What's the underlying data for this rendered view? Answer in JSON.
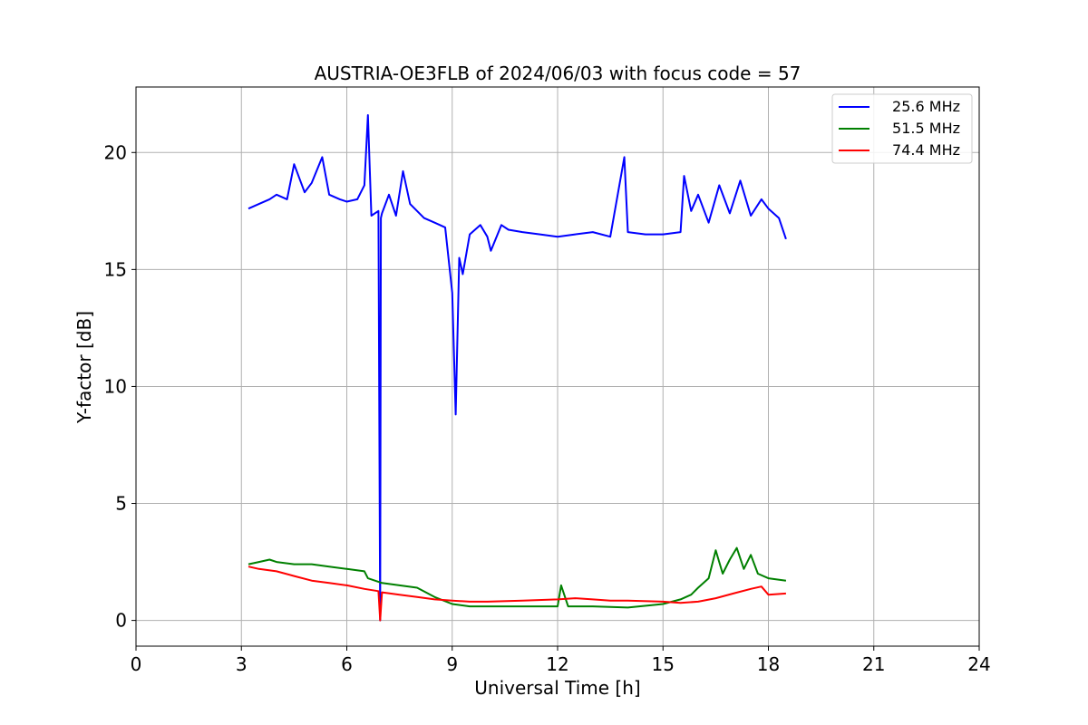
{
  "chart_data": {
    "type": "line",
    "title": "AUSTRIA-OE3FLB of 2024/06/03 with focus code = 57",
    "xlabel": "Universal Time [h]",
    "ylabel": "Y-factor [dB]",
    "xlim": [
      0,
      24
    ],
    "ylim": [
      -1.1,
      22.8
    ],
    "xticks": [
      0,
      3,
      6,
      9,
      12,
      15,
      18,
      21,
      24
    ],
    "yticks": [
      0,
      5,
      10,
      15,
      20
    ],
    "grid": true,
    "legend_position": "top-right",
    "series": [
      {
        "name": "25.6 MHz",
        "color": "#0000ff",
        "x": [
          3.2,
          3.5,
          3.8,
          4.0,
          4.3,
          4.5,
          4.8,
          5.0,
          5.3,
          5.5,
          5.8,
          6.0,
          6.3,
          6.5,
          6.6,
          6.7,
          6.9,
          6.95,
          6.97,
          7.0,
          7.2,
          7.4,
          7.6,
          7.8,
          8.0,
          8.2,
          8.5,
          8.8,
          9.0,
          9.1,
          9.2,
          9.3,
          9.5,
          9.8,
          10.0,
          10.1,
          10.4,
          10.6,
          11.0,
          11.5,
          12.0,
          12.5,
          13.0,
          13.5,
          13.9,
          14.0,
          14.5,
          15.0,
          15.5,
          15.6,
          15.8,
          16.0,
          16.3,
          16.6,
          16.9,
          17.2,
          17.5,
          17.8,
          18.0,
          18.3,
          18.5
        ],
        "y": [
          17.6,
          17.8,
          18.0,
          18.2,
          18.0,
          19.5,
          18.3,
          18.7,
          19.8,
          18.2,
          18.0,
          17.9,
          18.0,
          18.6,
          21.6,
          17.3,
          17.5,
          0.0,
          17.2,
          17.4,
          18.2,
          17.3,
          19.2,
          17.8,
          17.5,
          17.2,
          17.0,
          16.8,
          14.0,
          8.8,
          15.5,
          14.8,
          16.5,
          16.9,
          16.4,
          15.8,
          16.9,
          16.7,
          16.6,
          16.5,
          16.4,
          16.5,
          16.6,
          16.4,
          19.8,
          16.6,
          16.5,
          16.5,
          16.6,
          19.0,
          17.5,
          18.2,
          17.0,
          18.6,
          17.4,
          18.8,
          17.3,
          18.0,
          17.6,
          17.2,
          16.3
        ]
      },
      {
        "name": "51.5 MHz",
        "color": "#008000",
        "x": [
          3.2,
          3.5,
          3.8,
          4.0,
          4.5,
          5.0,
          5.5,
          6.0,
          6.5,
          6.6,
          7.0,
          7.5,
          8.0,
          8.5,
          9.0,
          9.5,
          10.0,
          11.0,
          12.0,
          12.1,
          12.3,
          13.0,
          14.0,
          15.0,
          15.5,
          15.8,
          16.0,
          16.3,
          16.5,
          16.7,
          16.9,
          17.1,
          17.3,
          17.5,
          17.7,
          18.0,
          18.5
        ],
        "y": [
          2.4,
          2.5,
          2.6,
          2.5,
          2.4,
          2.4,
          2.3,
          2.2,
          2.1,
          1.8,
          1.6,
          1.5,
          1.4,
          1.0,
          0.7,
          0.6,
          0.6,
          0.6,
          0.6,
          1.5,
          0.6,
          0.6,
          0.55,
          0.7,
          0.9,
          1.1,
          1.4,
          1.8,
          3.0,
          2.0,
          2.6,
          3.1,
          2.2,
          2.8,
          2.0,
          1.8,
          1.7
        ]
      },
      {
        "name": "74.4 MHz",
        "color": "#ff0000",
        "x": [
          3.2,
          3.5,
          4.0,
          4.5,
          5.0,
          5.5,
          6.0,
          6.5,
          6.9,
          6.95,
          7.0,
          7.5,
          8.0,
          8.5,
          9.0,
          9.5,
          10.0,
          11.0,
          12.0,
          12.5,
          13.0,
          13.5,
          14.0,
          15.0,
          15.5,
          16.0,
          16.5,
          17.0,
          17.5,
          17.8,
          18.0,
          18.5
        ],
        "y": [
          2.3,
          2.2,
          2.1,
          1.9,
          1.7,
          1.6,
          1.5,
          1.35,
          1.25,
          0.0,
          1.2,
          1.1,
          1.0,
          0.9,
          0.85,
          0.8,
          0.8,
          0.85,
          0.9,
          0.95,
          0.9,
          0.85,
          0.85,
          0.8,
          0.75,
          0.8,
          0.95,
          1.15,
          1.35,
          1.45,
          1.1,
          1.15
        ]
      }
    ]
  }
}
